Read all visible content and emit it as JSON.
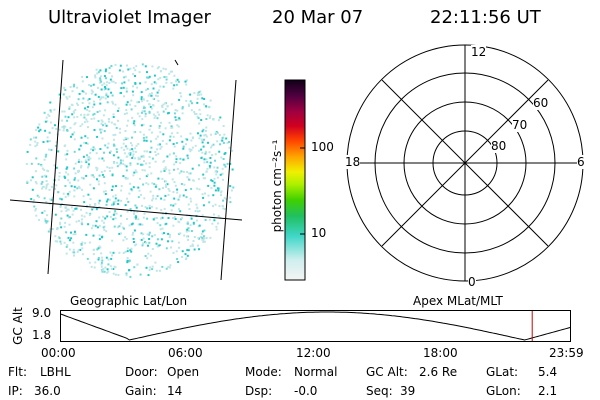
{
  "header": {
    "instrument": "Ultraviolet Imager",
    "date": "20 Mar 07",
    "time": "22:11:56 UT"
  },
  "colorbar": {
    "unit_label": "photon cm⁻²s⁻¹",
    "ticks": [
      "100",
      "10"
    ],
    "scale": "log"
  },
  "polar_plot": {
    "mlt_labels": {
      "top": "12",
      "left": "18",
      "right": "6",
      "bottom": "0"
    },
    "mlat_labels": [
      "60",
      "70",
      "80"
    ]
  },
  "timeline": {
    "left_title": "Geographic Lat/Lon",
    "right_title": "Apex MLat/MLT",
    "ylabel": "GC Alt",
    "y_ticks": [
      "9.0",
      "1.8"
    ],
    "x_ticks": [
      "00:00",
      "06:00",
      "12:00",
      "18:00",
      "23:59"
    ],
    "marker_time": "22:11:56",
    "marker_color": "#cc0000"
  },
  "status": {
    "flt_label": "Flt:",
    "flt_value": "LBHL",
    "ip_label": "IP:",
    "ip_value": "36.0",
    "door_label": "Door:",
    "door_value": "Open",
    "gain_label": "Gain:",
    "gain_value": "14",
    "mode_label": "Mode:",
    "mode_value": "Normal",
    "dsp_label": "Dsp:",
    "dsp_value": "-0.0",
    "gcalt_label": "GC Alt:",
    "gcalt_value": "2.6 Re",
    "seq_label": "Seq:",
    "seq_value": "39",
    "glat_label": "GLat:",
    "glat_value": "5.4",
    "glon_label": "GLon:",
    "glon_value": "2.1"
  },
  "colors": {
    "speckle_light": "#bfe6e6",
    "speckle_mid": "#6fd8d8",
    "speckle_bright": "#22c8c8"
  }
}
